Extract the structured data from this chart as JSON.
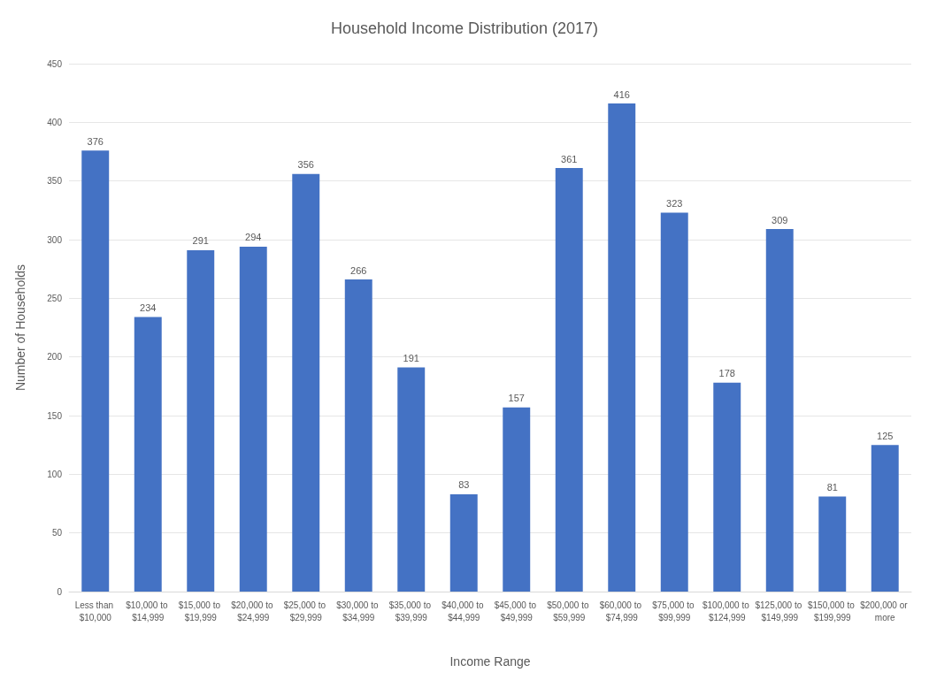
{
  "chart_data": {
    "type": "bar",
    "title": "Household Income Distribution (2017)",
    "xlabel": "Income Range",
    "ylabel": "Number of Households",
    "categories": [
      "Less than $10,000",
      "$10,000 to $14,999",
      "$15,000 to $19,999",
      "$20,000 to $24,999",
      "$25,000 to $29,999",
      "$30,000 to $34,999",
      "$35,000 to $39,999",
      "$40,000 to $44,999",
      "$45,000 to $49,999",
      "$50,000 to $59,999",
      "$60,000 to $74,999",
      "$75,000 to $99,999",
      "$100,000 to $124,999",
      "$125,000 to $149,999",
      "$150,000 to $199,999",
      "$200,000 or more"
    ],
    "values": [
      376,
      234,
      291,
      294,
      356,
      266,
      191,
      83,
      157,
      361,
      416,
      323,
      178,
      309,
      81,
      125
    ],
    "color": "#4472c4",
    "ylim": [
      0,
      450
    ],
    "yticks": [
      0,
      50,
      100,
      150,
      200,
      250,
      300,
      350,
      400,
      450
    ],
    "grid": "y",
    "data_labels": true
  }
}
